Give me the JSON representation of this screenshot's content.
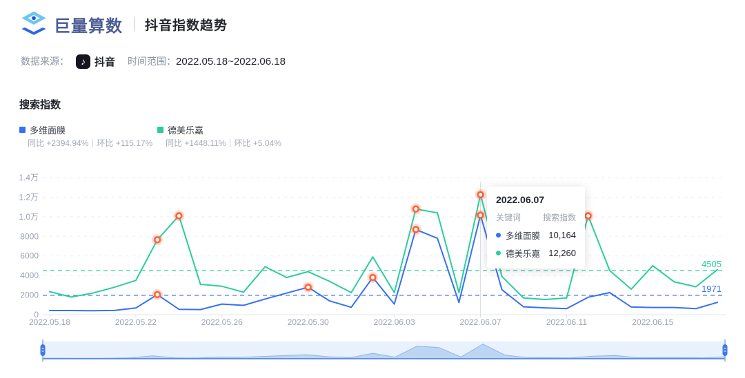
{
  "header": {
    "brand": "巨量算数",
    "title": "抖音指数趋势",
    "source_label": "数据来源：",
    "source_name": "抖音",
    "source_icon": "douyin-note-icon",
    "range_label": "时间范围：",
    "range_value": "2022.05.18~2022.06.18"
  },
  "section": {
    "title": "搜索指数"
  },
  "legend": [
    {
      "name": "多维面膜",
      "color": "#3670F6",
      "stats": "同比 +2394.94%｜环比 +115.17%"
    },
    {
      "name": "德美乐嘉",
      "color": "#2BCD9B",
      "stats": "同比 +1448.11%｜环比 +5.04%"
    }
  ],
  "tooltip": {
    "date": "2022.06.07",
    "col_keyword": "关键词",
    "col_value": "搜索指数",
    "rows": [
      {
        "name": "多维面膜",
        "value": "10,164",
        "color": "#3670F6"
      },
      {
        "name": "德美乐嘉",
        "value": "12,260",
        "color": "#2BCD9B"
      }
    ]
  },
  "chart_data": {
    "type": "line",
    "title": "搜索指数",
    "x": [
      "2022.05.18",
      "2022.05.19",
      "2022.05.20",
      "2022.05.21",
      "2022.05.22",
      "2022.05.23",
      "2022.05.24",
      "2022.05.25",
      "2022.05.26",
      "2022.05.27",
      "2022.05.28",
      "2022.05.29",
      "2022.05.30",
      "2022.05.31",
      "2022.06.01",
      "2022.06.02",
      "2022.06.03",
      "2022.06.04",
      "2022.06.05",
      "2022.06.06",
      "2022.06.07",
      "2022.06.08",
      "2022.06.09",
      "2022.06.10",
      "2022.06.11",
      "2022.06.12",
      "2022.06.13",
      "2022.06.14",
      "2022.06.15",
      "2022.06.16",
      "2022.06.17",
      "2022.06.18"
    ],
    "series": [
      {
        "name": "多维面膜",
        "color": "#3670F6",
        "values": [
          420,
          420,
          400,
          430,
          680,
          2050,
          550,
          520,
          1080,
          950,
          1600,
          2200,
          2800,
          1400,
          750,
          3800,
          1080,
          8700,
          7800,
          1250,
          10164,
          2550,
          800,
          700,
          620,
          1780,
          2250,
          780,
          730,
          730,
          610,
          1250
        ],
        "avg": 1971,
        "avg_label": "1971",
        "marked": [
          5,
          12,
          15,
          17,
          20
        ]
      },
      {
        "name": "德美乐嘉",
        "color": "#2BCD9B",
        "values": [
          2350,
          1800,
          2200,
          2800,
          3500,
          7650,
          10100,
          3100,
          2900,
          2300,
          4900,
          3800,
          4400,
          3400,
          2250,
          5900,
          2250,
          10800,
          10400,
          2250,
          12260,
          3900,
          1700,
          1550,
          1700,
          10100,
          4500,
          2600,
          5000,
          3350,
          2850,
          4600
        ],
        "avg": 4505,
        "avg_label": "4505",
        "marked": [
          5,
          6,
          17,
          20,
          25
        ]
      }
    ],
    "ylim": [
      0,
      14000
    ],
    "y_ticks": [
      {
        "value": 0,
        "label": "0"
      },
      {
        "value": 2000,
        "label": "2000"
      },
      {
        "value": 4000,
        "label": "4000"
      },
      {
        "value": 6000,
        "label": "6000"
      },
      {
        "value": 8000,
        "label": "8000"
      },
      {
        "value": 10000,
        "label": "1.0万"
      },
      {
        "value": 12000,
        "label": "1.2万"
      },
      {
        "value": 14000,
        "label": "1.4万"
      }
    ],
    "x_tick_indices": [
      0,
      4,
      8,
      12,
      16,
      20,
      24,
      28
    ],
    "crosshair_index": 20,
    "marker_color": "#FF6136",
    "grid": true,
    "legend_position": "top-left",
    "scrubber": {
      "preview_series_index": 0,
      "handles": [
        "left",
        "right"
      ]
    }
  }
}
